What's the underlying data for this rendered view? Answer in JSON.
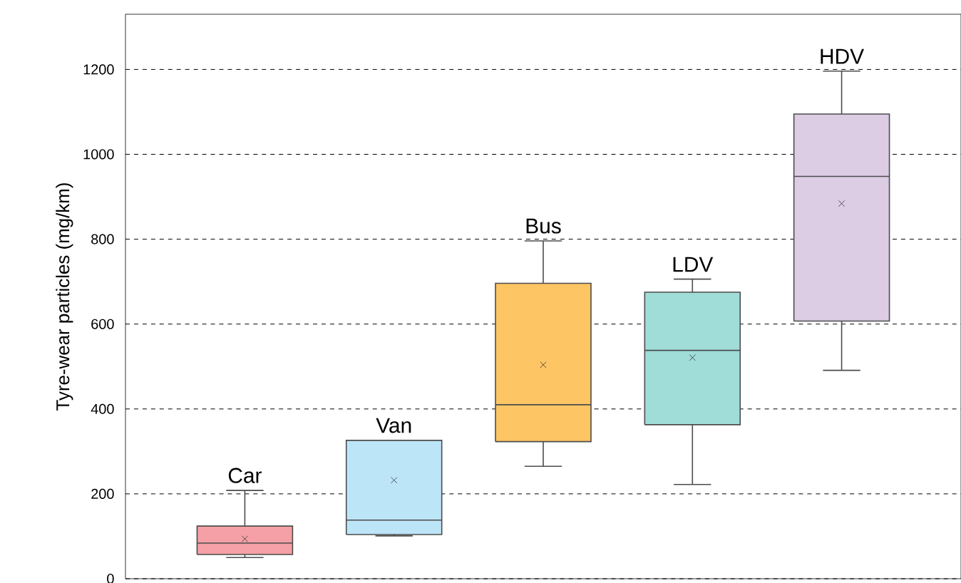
{
  "chart_data": {
    "type": "box",
    "ylabel": "Tyre-wear particles (mg/km)",
    "categories": [
      "Car",
      "Van",
      "Bus",
      "LDV",
      "HDV"
    ],
    "colors": [
      "#f4a0a6",
      "#bde5f8",
      "#fec564",
      "#a0dcd8",
      "#dccce4"
    ],
    "boxes": [
      {
        "low": 50,
        "q1": 57,
        "median": 84,
        "q3": 124,
        "high": 208,
        "mean": 94
      },
      {
        "low": 101,
        "q1": 104,
        "median": 138,
        "q3": 326,
        "high": 326,
        "mean": 232
      },
      {
        "low": 265,
        "q1": 323,
        "median": 410,
        "q3": 696,
        "high": 796,
        "mean": 504
      },
      {
        "low": 222,
        "q1": 363,
        "median": 538,
        "q3": 675,
        "high": 706,
        "mean": 521
      },
      {
        "low": 491,
        "q1": 607,
        "median": 948,
        "q3": 1095,
        "high": 1196,
        "mean": 884
      }
    ],
    "ylim": [
      0,
      1330
    ],
    "yticks": [
      0,
      200,
      400,
      600,
      800,
      1000,
      1200
    ],
    "grid": "y",
    "marker": "cross",
    "tick_labels": "y"
  }
}
